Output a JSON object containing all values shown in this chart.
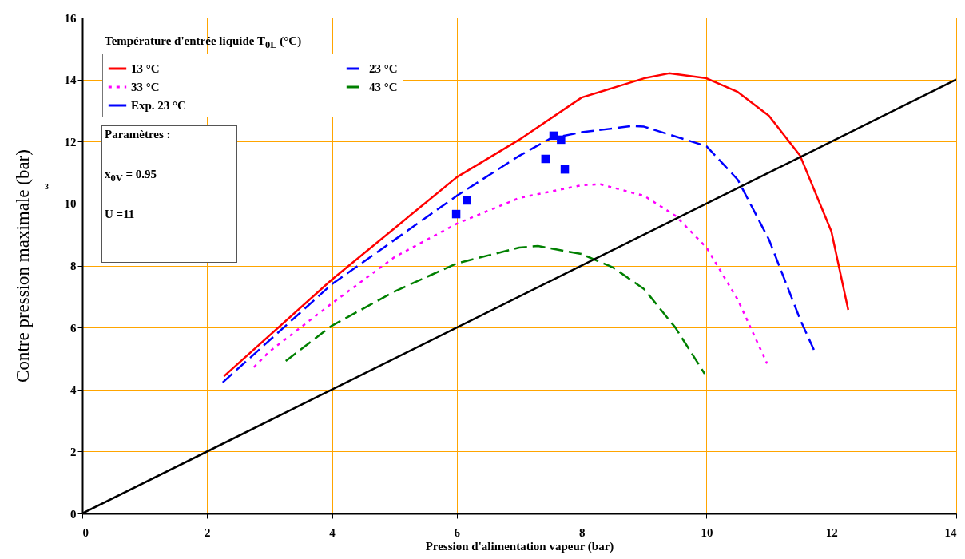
{
  "chart_data": {
    "type": "line",
    "xlabel": "Pression d'alimentation vapeur          (bar)",
    "ylabel": "Contre pression maximale  (bar)",
    "legend_title": "Température d'entrée liquide T$_{0L}$ (°C)",
    "annotations": [
      "Paramètres :",
      "x$_{0V}$ = 0.95",
      "U =11",
      "3"
    ],
    "xlim": [
      0,
      14
    ],
    "xticks": [
      0,
      2,
      4,
      6,
      8,
      10,
      12,
      14
    ],
    "ylim": [
      0,
      16
    ],
    "yticks": [
      0,
      2,
      4,
      6,
      8,
      10,
      12,
      14,
      16
    ],
    "grid": true,
    "legend": "top left",
    "series": [
      {
        "name": "13 °C",
        "color": "#ff0000",
        "line_style": "solid",
        "x": [
          2.27,
          4,
          6,
          7,
          8,
          9,
          9.4,
          10,
          10.5,
          11,
          11.5,
          12,
          12.27
        ],
        "values": [
          4.43,
          7.55,
          10.85,
          12.06,
          13.42,
          14.04,
          14.2,
          14.04,
          13.6,
          12.83,
          11.54,
          9.1,
          6.57
        ]
      },
      {
        "name": "23 °C",
        "color": "#0000ff",
        "line_style": "dashed",
        "x": [
          2.25,
          4,
          6,
          7,
          7.5,
          8,
          8.8,
          9,
          10,
          10.5,
          11,
          11.5,
          11.72
        ],
        "values": [
          4.23,
          7.4,
          10.25,
          11.54,
          12.1,
          12.3,
          12.5,
          12.48,
          11.85,
          10.77,
          8.84,
          6.26,
          5.28
        ]
      },
      {
        "name": "33 °C",
        "color": "#ff00ff",
        "line_style": "dotted",
        "x": [
          2.75,
          3,
          4,
          5,
          6,
          7,
          8,
          8.3,
          9,
          9.5,
          10,
          10.5,
          10.97
        ],
        "values": [
          4.72,
          5.23,
          6.78,
          8.27,
          9.35,
          10.18,
          10.59,
          10.62,
          10.25,
          9.61,
          8.58,
          6.9,
          4.84
        ]
      },
      {
        "name": "43 °C",
        "color": "#008000",
        "line_style": "dashed",
        "x": [
          3.26,
          4,
          5,
          6,
          7,
          7.3,
          8,
          8.5,
          9,
          9.5,
          9.97
        ],
        "values": [
          4.92,
          6.06,
          7.16,
          8.07,
          8.58,
          8.63,
          8.37,
          7.94,
          7.24,
          6.0,
          4.51
        ]
      },
      {
        "name": "Exp.  23 °C",
        "type": "scatter",
        "marker": "square",
        "color": "#0000ff",
        "x": [
          5.99,
          6.16,
          7.42,
          7.55,
          7.67,
          7.73
        ],
        "values": [
          9.66,
          10.1,
          11.44,
          12.19,
          12.06,
          11.1
        ]
      },
      {
        "color": "#000000",
        "line_style": "solid",
        "x": [
          0,
          14
        ],
        "values": [
          0,
          14
        ]
      }
    ]
  }
}
